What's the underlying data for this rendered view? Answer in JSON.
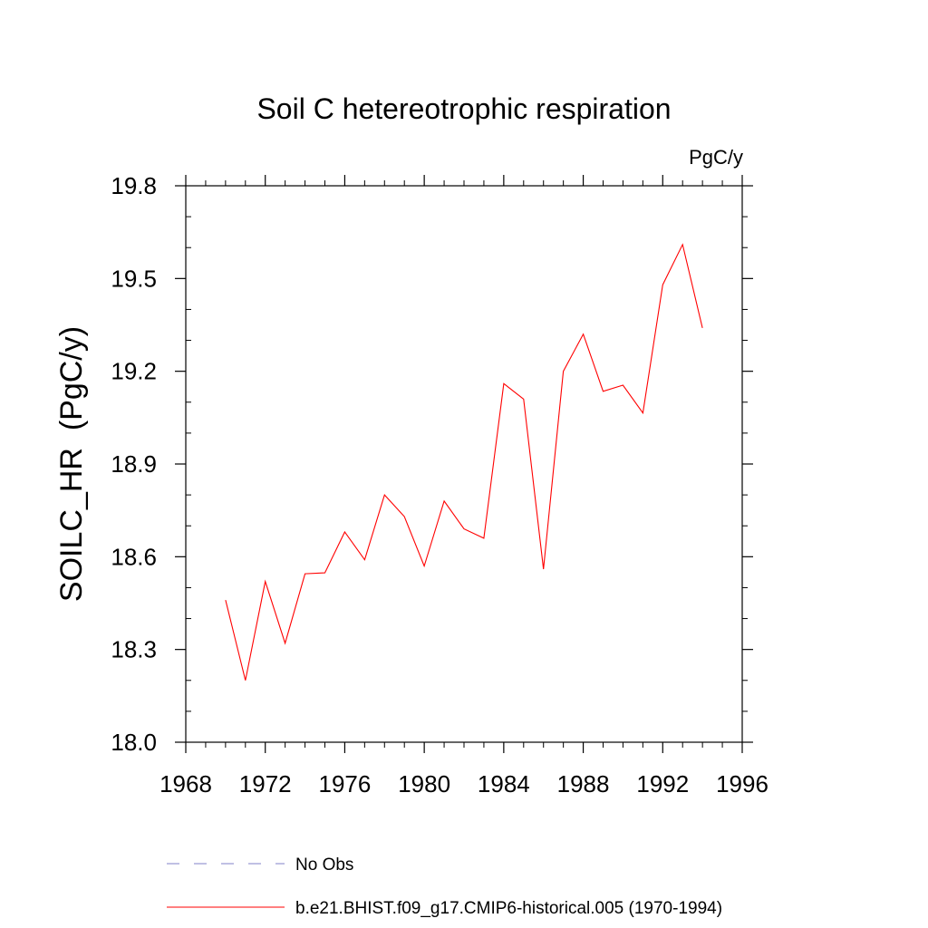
{
  "chart_data": {
    "type": "line",
    "title": "Soil C hetereotrophic respiration",
    "units_label": "PgC/y",
    "ylabel": "SOILC_HR  (PgC/y)",
    "xlabel": "",
    "xlim": [
      1968,
      1996
    ],
    "ylim": [
      18.0,
      19.8
    ],
    "x_ticks": [
      "1968",
      "1972",
      "1976",
      "1980",
      "1984",
      "1988",
      "1992",
      "1996"
    ],
    "y_ticks": [
      "18.0",
      "18.3",
      "18.6",
      "18.9",
      "19.2",
      "19.5",
      "19.8"
    ],
    "grid": false,
    "legend_position": "bottom",
    "series": [
      {
        "name": "No Obs",
        "style": "dashed",
        "color": "#8080c8",
        "x": [],
        "values": []
      },
      {
        "name": "b.e21.BHIST.f09_g17.CMIP6-historical.005 (1970-1994)",
        "style": "solid",
        "color": "#ff0000",
        "x": [
          1970,
          1971,
          1972,
          1973,
          1974,
          1975,
          1976,
          1977,
          1978,
          1979,
          1980,
          1981,
          1982,
          1983,
          1984,
          1985,
          1986,
          1987,
          1988,
          1989,
          1990,
          1991,
          1992,
          1993,
          1994
        ],
        "values": [
          18.46,
          18.2,
          18.52,
          18.32,
          18.545,
          18.548,
          18.68,
          18.59,
          18.8,
          18.73,
          18.57,
          18.78,
          18.69,
          18.66,
          19.16,
          19.11,
          18.56,
          19.2,
          19.32,
          19.135,
          19.155,
          19.065,
          19.48,
          19.61,
          19.34
        ]
      }
    ]
  }
}
